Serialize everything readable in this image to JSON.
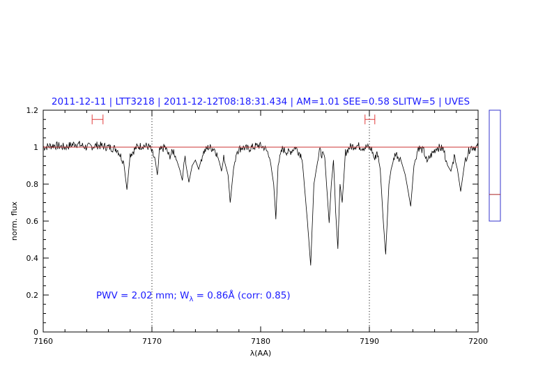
{
  "chart_data": {
    "type": "line",
    "title": "2011-12-11 | LTT3218 | 2011-12-12T08:18:31.434 | AM=1.01 SEE=0.58 SLITW=5 | UVES",
    "xlabel": "λ(AA)",
    "ylabel": "norm. flux",
    "xlim": [
      7160,
      7200
    ],
    "ylim": [
      0,
      1.2
    ],
    "x_ticks": [
      7160,
      7170,
      7180,
      7190,
      7200
    ],
    "y_ticks": [
      0,
      0.2,
      0.4,
      0.6,
      0.8,
      1,
      1.2
    ],
    "x_tick_labels": [
      "7160",
      "7170",
      "7180",
      "7190",
      "7200"
    ],
    "y_tick_labels": [
      "0",
      "0.2",
      "0.4",
      "0.6",
      "0.8",
      "1",
      "1.2"
    ],
    "vertical_dotted_lines": [
      7170,
      7190
    ],
    "continuum_level": 1.0,
    "series": [
      {
        "color": "#000000",
        "x": [
          7160.0,
          7161.0,
          7162.0,
          7163.0,
          7164.0,
          7165.0,
          7166.0,
          7166.8,
          7167.4,
          7167.7,
          7168.0,
          7168.6,
          7169.2,
          7169.8,
          7170.3,
          7170.5,
          7170.7,
          7171.2,
          7171.6,
          7172.0,
          7172.6,
          7172.8,
          7173.0,
          7173.2,
          7173.4,
          7173.7,
          7174.0,
          7174.3,
          7174.7,
          7175.2,
          7175.8,
          7176.2,
          7176.4,
          7176.6,
          7177.0,
          7177.2,
          7177.5,
          7177.8,
          7178.3,
          7178.8,
          7179.3,
          7179.8,
          7180.3,
          7180.8,
          7181.2,
          7181.4,
          7181.6,
          7182.0,
          7182.6,
          7183.2,
          7183.8,
          7184.3,
          7184.6,
          7184.9,
          7185.4,
          7185.9,
          7186.2,
          7186.3,
          7186.5,
          7186.7,
          7186.9,
          7187.1,
          7187.3,
          7187.5,
          7187.8,
          7188.2,
          7188.8,
          7189.3,
          7189.8,
          7190.2,
          7190.5,
          7190.7,
          7191.0,
          7191.3,
          7191.5,
          7191.8,
          7192.0,
          7192.4,
          7192.9,
          7193.3,
          7193.6,
          7193.8,
          7194.1,
          7194.5,
          7195.0,
          7195.3,
          7195.6,
          7196.2,
          7196.8,
          7197.2,
          7197.5,
          7197.8,
          7198.1,
          7198.4,
          7198.8,
          7199.3,
          7199.8,
          7200.0
        ],
        "y": [
          1.0,
          1.01,
          1.0,
          1.02,
          1.0,
          1.01,
          1.0,
          0.99,
          0.92,
          0.77,
          0.96,
          1.0,
          1.01,
          1.0,
          0.93,
          0.85,
          0.98,
          1.0,
          0.95,
          0.98,
          0.87,
          0.82,
          0.95,
          0.88,
          0.81,
          0.9,
          0.93,
          0.88,
          0.97,
          1.0,
          0.99,
          0.92,
          0.87,
          0.94,
          0.85,
          0.7,
          0.88,
          0.98,
          1.0,
          0.99,
          1.0,
          1.01,
          1.0,
          0.96,
          0.8,
          0.61,
          0.9,
          0.99,
          0.97,
          1.0,
          0.95,
          0.6,
          0.36,
          0.8,
          0.98,
          0.94,
          0.68,
          0.59,
          0.8,
          0.93,
          0.65,
          0.45,
          0.8,
          0.7,
          0.97,
          1.0,
          1.01,
          1.0,
          1.0,
          0.99,
          0.93,
          0.98,
          0.88,
          0.58,
          0.42,
          0.8,
          0.88,
          0.97,
          0.93,
          0.85,
          0.75,
          0.68,
          0.9,
          1.0,
          0.98,
          0.92,
          0.95,
          1.0,
          0.99,
          0.9,
          0.87,
          0.95,
          0.88,
          0.76,
          0.93,
          1.0,
          1.0,
          1.0
        ]
      },
      {
        "color": "#cc3333",
        "x": [
          7160,
          7200
        ],
        "y": [
          1.0,
          1.0
        ]
      }
    ],
    "red_error_bars": [
      {
        "x1": 7164.5,
        "x2": 7165.5,
        "y": 1.15
      },
      {
        "x1": 7189.6,
        "x2": 7190.5,
        "y": 1.15
      }
    ],
    "annotation": {
      "prefix": "PWV = 2.02 mm; W",
      "subscript": "λ",
      "suffix": " = 0.86Å (corr: 0.85)"
    },
    "side_indicator": {
      "marker_fraction": 0.76,
      "box_color": "#3333cc",
      "marker_color": "#aa2222"
    }
  }
}
